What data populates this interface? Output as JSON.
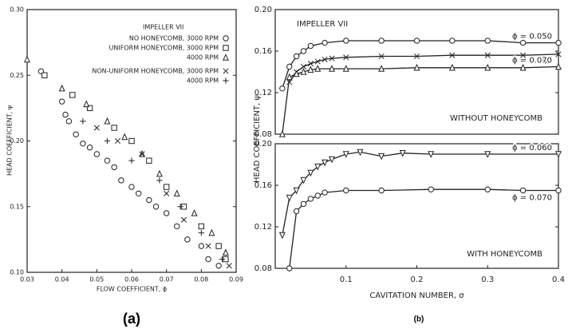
{
  "chart_data": [
    {
      "type": "scatter",
      "panel_label": "(a)",
      "xlabel": "FLOW COEFFICIENT, ϕ",
      "ylabel": "HEAD COEFFICIENT, ψ",
      "legend_title": "IMPELLER VII",
      "legend": "upper right",
      "xlim": [
        0.03,
        0.09
      ],
      "xticks": [
        0.03,
        0.04,
        0.05,
        0.06,
        0.07,
        0.08,
        0.09
      ],
      "ylim": [
        0.1,
        0.3
      ],
      "yticks": [
        {
          "value": 0.1,
          "label": "0.10"
        },
        0.15,
        {
          "value": 0.2,
          "label": "0.20"
        },
        0.25,
        {
          "value": 0.3,
          "label": "0.30"
        }
      ],
      "series": [
        {
          "name": "NO HONEYCOMB, 3000 RPM",
          "marker": "circle",
          "color": "#222",
          "x": [
            0.034,
            0.04,
            0.041,
            0.042,
            0.044,
            0.046,
            0.048,
            0.05,
            0.053,
            0.055,
            0.057,
            0.06,
            0.062,
            0.065,
            0.067,
            0.07,
            0.073,
            0.076,
            0.08,
            0.082,
            0.085
          ],
          "values": [
            0.253,
            0.23,
            0.22,
            0.215,
            0.205,
            0.198,
            0.195,
            0.19,
            0.185,
            0.18,
            0.17,
            0.165,
            0.16,
            0.155,
            0.15,
            0.145,
            0.135,
            0.125,
            0.12,
            0.11,
            0.105
          ]
        },
        {
          "name": "UNIFORM HONEYCOMB, 3000 RPM",
          "marker": "square",
          "color": "#222",
          "x": [
            0.035,
            0.043,
            0.048,
            0.055,
            0.06,
            0.065,
            0.07,
            0.075,
            0.08,
            0.085,
            0.087
          ],
          "values": [
            0.25,
            0.235,
            0.225,
            0.21,
            0.2,
            0.185,
            0.165,
            0.15,
            0.135,
            0.12,
            0.11
          ]
        },
        {
          "name": "4000 RPM",
          "marker": "triangle",
          "color": "#222",
          "x": [
            0.03,
            0.04,
            0.047,
            0.053,
            0.058,
            0.063,
            0.068,
            0.073,
            0.078,
            0.083,
            0.087
          ],
          "values": [
            0.262,
            0.24,
            0.228,
            0.215,
            0.203,
            0.19,
            0.175,
            0.16,
            0.145,
            0.13,
            0.115
          ]
        },
        {
          "name": "NON-UNIFORM HONEYCOMB, 3000 RPM",
          "marker": "x",
          "color": "#222",
          "x": [
            0.05,
            0.056,
            0.063,
            0.07,
            0.075,
            0.082,
            0.088
          ],
          "values": [
            0.21,
            0.2,
            0.19,
            0.16,
            0.14,
            0.12,
            0.105
          ]
        },
        {
          "name": "4000 RPM",
          "marker": "plus",
          "color": "#222",
          "x": [
            0.046,
            0.053,
            0.06,
            0.068,
            0.074,
            0.08,
            0.086
          ],
          "values": [
            0.215,
            0.2,
            0.185,
            0.17,
            0.15,
            0.13,
            0.11
          ]
        }
      ]
    },
    {
      "type": "line",
      "ylabel": "HEAD COEFFICIENT, ψ",
      "annotations": [
        "IMPELLER VII",
        "WITHOUT HONEYCOMB"
      ],
      "xlim": [
        0,
        0.4
      ],
      "ylim": [
        0.08,
        0.2
      ],
      "yticks": [
        0.08,
        0.12,
        0.16,
        {
          "value": 0.2,
          "label": "0.20"
        }
      ],
      "series": [
        {
          "name": "ϕ = 0.050",
          "marker": "circle",
          "color": "#222",
          "x": [
            0.01,
            0.02,
            0.03,
            0.04,
            0.05,
            0.07,
            0.1,
            0.15,
            0.2,
            0.25,
            0.3,
            0.35,
            0.4
          ],
          "values": [
            0.124,
            0.145,
            0.155,
            0.16,
            0.165,
            0.168,
            0.17,
            0.17,
            0.17,
            0.17,
            0.17,
            0.168,
            0.168
          ]
        },
        {
          "name": "ϕ = 0.065",
          "marker": "x",
          "color": "#222",
          "x": [
            0.02,
            0.03,
            0.04,
            0.05,
            0.06,
            0.07,
            0.08,
            0.1,
            0.15,
            0.2,
            0.25,
            0.3,
            0.35,
            0.4
          ],
          "values": [
            0.13,
            0.14,
            0.145,
            0.148,
            0.15,
            0.152,
            0.153,
            0.154,
            0.155,
            0.155,
            0.156,
            0.156,
            0.156,
            0.157
          ]
        },
        {
          "name": "ϕ = 0.070",
          "marker": "triangle",
          "color": "#222",
          "x": [
            0.01,
            0.02,
            0.03,
            0.04,
            0.05,
            0.06,
            0.08,
            0.1,
            0.15,
            0.2,
            0.25,
            0.3,
            0.35,
            0.4
          ],
          "values": [
            0.08,
            0.135,
            0.138,
            0.14,
            0.142,
            0.143,
            0.143,
            0.143,
            0.143,
            0.144,
            0.144,
            0.144,
            0.144,
            0.145
          ]
        }
      ]
    },
    {
      "type": "line",
      "panel_label": "(b)",
      "xlabel": "CAVITATION NUMBER, σ",
      "annotations": [
        "WITH HONEYCOMB"
      ],
      "xlim": [
        0,
        0.4
      ],
      "xticks": [
        0.1,
        0.2,
        0.3,
        0.4
      ],
      "ylim": [
        0.08,
        0.2
      ],
      "yticks": [
        0.08,
        0.12,
        0.16,
        {
          "value": 0.2,
          "label": "0.20"
        }
      ],
      "series": [
        {
          "name": "ϕ = 0.060",
          "marker": "triangle-down",
          "color": "#222",
          "x": [
            0.01,
            0.02,
            0.03,
            0.04,
            0.05,
            0.06,
            0.07,
            0.08,
            0.1,
            0.12,
            0.15,
            0.18,
            0.22,
            0.3,
            0.4
          ],
          "values": [
            0.112,
            0.148,
            0.155,
            0.165,
            0.172,
            0.178,
            0.182,
            0.185,
            0.19,
            0.192,
            0.188,
            0.191,
            0.19,
            0.19,
            0.19
          ]
        },
        {
          "name": "ϕ = 0.070",
          "marker": "circle",
          "color": "#222",
          "x": [
            0.02,
            0.03,
            0.04,
            0.05,
            0.06,
            0.07,
            0.1,
            0.15,
            0.22,
            0.3,
            0.35,
            0.4
          ],
          "values": [
            0.08,
            0.135,
            0.142,
            0.147,
            0.15,
            0.153,
            0.155,
            0.155,
            0.156,
            0.156,
            0.155,
            0.155
          ]
        }
      ]
    }
  ]
}
